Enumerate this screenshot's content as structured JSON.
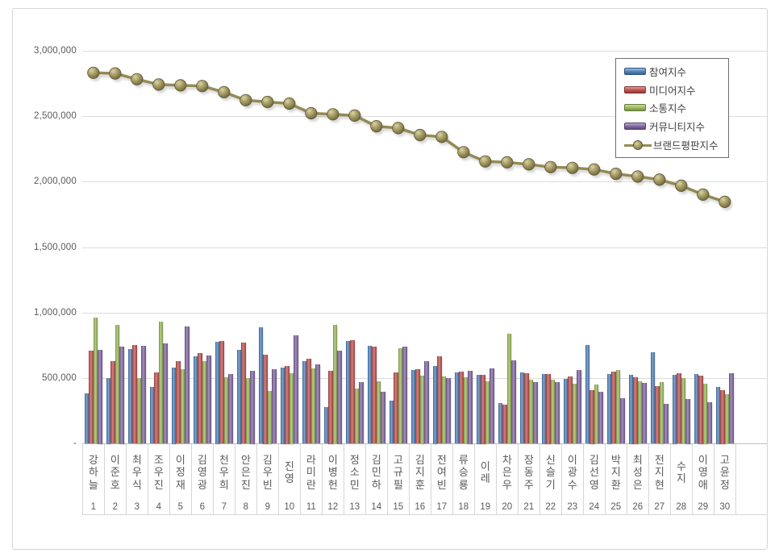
{
  "chart_data": {
    "type": "bar+line",
    "title": "",
    "grid": true,
    "legend_position": "top-right",
    "y_axis": {
      "min": 0,
      "max": 3000000,
      "step": 500000,
      "ticks": [
        {
          "label": "3,000,000",
          "value": 3000000
        },
        {
          "label": "2,500,000",
          "value": 2500000
        },
        {
          "label": "2,000,000",
          "value": 2000000
        },
        {
          "label": "1,500,000",
          "value": 1500000
        },
        {
          "label": "1,000,000",
          "value": 1000000
        },
        {
          "label": "500,000",
          "value": 500000
        },
        {
          "label": "-",
          "value": 0
        }
      ]
    },
    "categories": [
      {
        "rank": "1",
        "name": "강하늘"
      },
      {
        "rank": "2",
        "name": "이준호"
      },
      {
        "rank": "3",
        "name": "최우식"
      },
      {
        "rank": "4",
        "name": "조우진"
      },
      {
        "rank": "5",
        "name": "이정재"
      },
      {
        "rank": "6",
        "name": "김영광"
      },
      {
        "rank": "7",
        "name": "천우희"
      },
      {
        "rank": "8",
        "name": "안은진"
      },
      {
        "rank": "9",
        "name": "김우빈"
      },
      {
        "rank": "10",
        "name": "진영"
      },
      {
        "rank": "11",
        "name": "라미란"
      },
      {
        "rank": "12",
        "name": "이병헌"
      },
      {
        "rank": "13",
        "name": "정소민"
      },
      {
        "rank": "14",
        "name": "김민하"
      },
      {
        "rank": "15",
        "name": "고규필"
      },
      {
        "rank": "16",
        "name": "김지훈"
      },
      {
        "rank": "17",
        "name": "전여빈"
      },
      {
        "rank": "18",
        "name": "류승룡"
      },
      {
        "rank": "19",
        "name": "이레"
      },
      {
        "rank": "20",
        "name": "차은우"
      },
      {
        "rank": "21",
        "name": "장동주"
      },
      {
        "rank": "22",
        "name": "신슬기"
      },
      {
        "rank": "23",
        "name": "이광수"
      },
      {
        "rank": "24",
        "name": "김선영"
      },
      {
        "rank": "25",
        "name": "박지환"
      },
      {
        "rank": "26",
        "name": "최성은"
      },
      {
        "rank": "27",
        "name": "전지현"
      },
      {
        "rank": "28",
        "name": "수지"
      },
      {
        "rank": "29",
        "name": "이영애"
      },
      {
        "rank": "30",
        "name": "고윤정"
      }
    ],
    "series": [
      {
        "name": "참여지수",
        "type": "bar",
        "color": "#4F81BD",
        "values": [
          385000,
          500000,
          725000,
          435000,
          580000,
          670000,
          780000,
          720000,
          888000,
          580000,
          629000,
          278000,
          784000,
          746000,
          330000,
          561000,
          594000,
          546000,
          526000,
          313000,
          546000,
          532000,
          493000,
          753000,
          532000,
          526000,
          701000,
          526000,
          530000,
          437000
        ]
      },
      {
        "name": "미디어지수",
        "type": "bar",
        "color": "#C0504D",
        "values": [
          710000,
          630000,
          755000,
          545000,
          630000,
          690000,
          785000,
          770000,
          680000,
          594000,
          650000,
          557000,
          790000,
          742000,
          542000,
          571000,
          670000,
          553000,
          526000,
          299000,
          536000,
          532000,
          513000,
          412000,
          553000,
          511000,
          439000,
          536000,
          520000,
          412000
        ]
      },
      {
        "name": "소통지수",
        "type": "bar",
        "color": "#9BBB59",
        "values": [
          965000,
          905000,
          500000,
          935000,
          572000,
          628000,
          510000,
          503000,
          406000,
          540000,
          577000,
          907000,
          419000,
          478000,
          732000,
          520000,
          515000,
          505000,
          478000,
          839000,
          491000,
          491000,
          458000,
          450000,
          561000,
          478000,
          474000,
          499000,
          460000,
          377000
        ]
      },
      {
        "name": "커뮤니티지수",
        "type": "bar",
        "color": "#8064A2",
        "values": [
          720000,
          740000,
          745000,
          765000,
          898000,
          675000,
          535000,
          557000,
          567000,
          827000,
          608000,
          711000,
          468000,
          396000,
          742000,
          629000,
          501000,
          557000,
          573000,
          635000,
          470000,
          474000,
          562000,
          396000,
          346000,
          464000,
          305000,
          340000,
          315000,
          536000
        ]
      },
      {
        "name": "브랜드평판지수",
        "type": "line",
        "color": "#948A54",
        "values": [
          2832000,
          2827000,
          2783000,
          2742000,
          2736000,
          2731000,
          2684000,
          2623000,
          2609000,
          2597000,
          2523000,
          2515000,
          2505000,
          2424000,
          2410000,
          2357000,
          2343000,
          2226000,
          2155000,
          2148000,
          2133000,
          2112000,
          2106000,
          2094000,
          2061000,
          2040000,
          2016000,
          1970000,
          1902000,
          1847000
        ]
      }
    ]
  }
}
